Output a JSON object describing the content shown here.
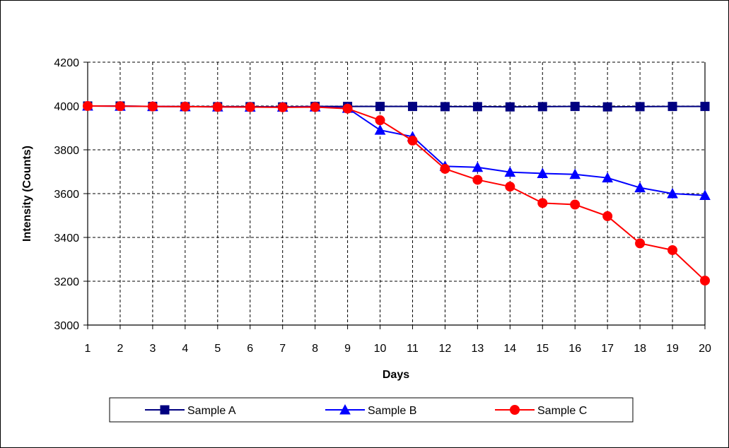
{
  "chart_data": {
    "type": "line",
    "title": "",
    "xlabel": "Days",
    "ylabel": "Intensity (Counts)",
    "x": [
      1,
      2,
      3,
      4,
      5,
      6,
      7,
      8,
      9,
      10,
      11,
      12,
      13,
      14,
      15,
      16,
      17,
      18,
      19,
      20
    ],
    "xlim": [
      1,
      20
    ],
    "ylim": [
      3000,
      4200
    ],
    "yticks": [
      3000,
      3200,
      3400,
      3600,
      3800,
      4000,
      4200
    ],
    "grid": true,
    "legend_position": "bottom",
    "series": [
      {
        "name": "Sample A",
        "color": "#000080",
        "marker": "square",
        "values": [
          4000,
          4000,
          3998,
          3997,
          3997,
          3997,
          3996,
          3998,
          3998,
          3998,
          3998,
          3997,
          3997,
          3996,
          3997,
          3998,
          3996,
          3997,
          3998,
          3998
        ]
      },
      {
        "name": "Sample B",
        "color": "#0000FF",
        "marker": "triangle",
        "values": [
          4000,
          3999,
          3998,
          3997,
          3996,
          3995,
          3995,
          3996,
          3990,
          3890,
          3860,
          3725,
          3720,
          3698,
          3692,
          3688,
          3672,
          3627,
          3600,
          3592
        ]
      },
      {
        "name": "Sample C",
        "color": "#FF0000",
        "marker": "circle",
        "values": [
          4000,
          3999,
          3998,
          3997,
          3996,
          3995,
          3994,
          3995,
          3988,
          3935,
          3842,
          3713,
          3663,
          3632,
          3557,
          3550,
          3497,
          3373,
          3342,
          3203
        ]
      }
    ]
  }
}
